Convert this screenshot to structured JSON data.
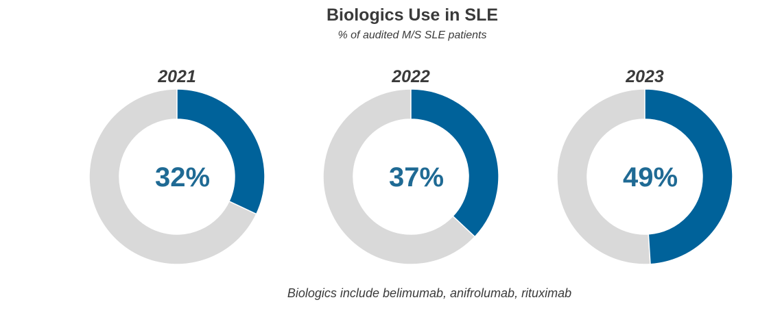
{
  "header": {
    "title": "Biologics Use in SLE",
    "subtitle": "% of audited M/S SLE patients"
  },
  "footnote": "Biologics include belimumab, anifrolumab, rituximab",
  "colors": {
    "highlight": "#00629a",
    "remainder": "#d9d9d9",
    "value_text": "#1f6a94",
    "text": "#3a3a3a"
  },
  "chart_data": {
    "type": "pie",
    "variant": "donut",
    "title": "Biologics Use in SLE",
    "subtitle": "% of audited M/S SLE patients",
    "unit": "%",
    "charts": [
      {
        "label": "2021",
        "value": 32,
        "display": "32%"
      },
      {
        "label": "2022",
        "value": 37,
        "display": "37%"
      },
      {
        "label": "2023",
        "value": 49,
        "display": "49%"
      }
    ]
  }
}
